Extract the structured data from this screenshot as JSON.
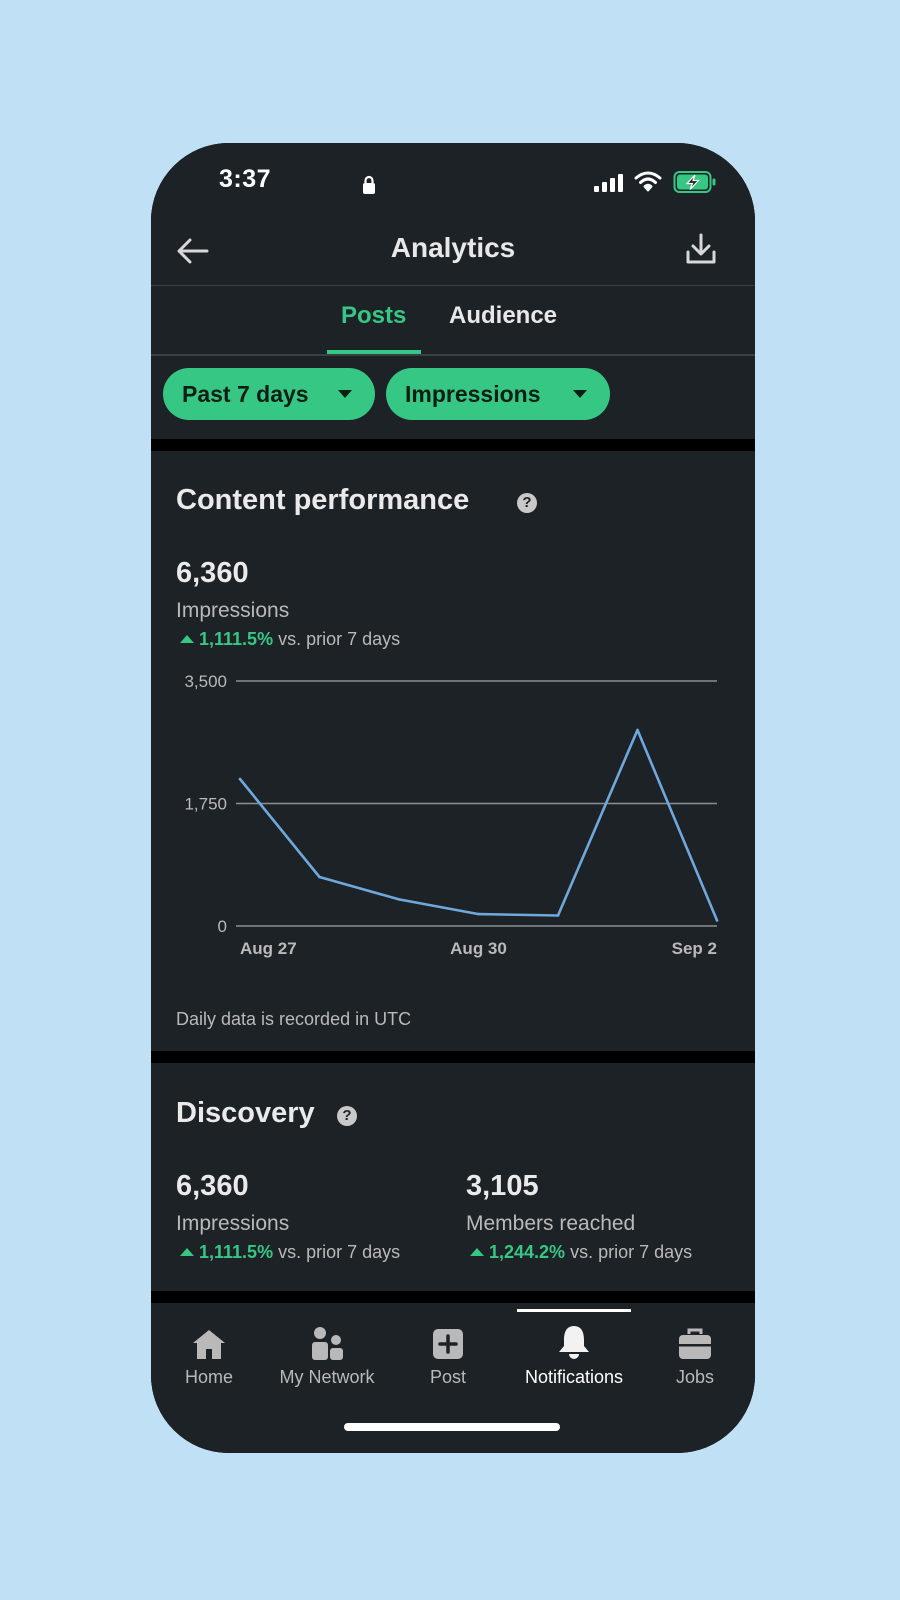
{
  "status_bar": {
    "time": "3:37"
  },
  "header": {
    "title": "Analytics"
  },
  "tabs": [
    {
      "label": "Posts",
      "active": true
    },
    {
      "label": "Audience",
      "active": false
    }
  ],
  "filters": [
    {
      "label": "Past 7 days"
    },
    {
      "label": "Impressions"
    }
  ],
  "content_performance": {
    "title": "Content performance",
    "value": "6,360",
    "label": "Impressions",
    "delta": "1,111.5%",
    "delta_suffix": "vs. prior 7 days",
    "note": "Daily data is recorded in UTC"
  },
  "chart_data": {
    "type": "line",
    "x": [
      "Aug 27",
      "Aug 28",
      "Aug 29",
      "Aug 30",
      "Aug 31",
      "Sep 1",
      "Sep 2"
    ],
    "y_ticks": [
      "3,500",
      "1,750",
      "0"
    ],
    "x_ticks": [
      "Aug 27",
      "Aug 30",
      "Sep 2"
    ],
    "ylim": [
      0,
      3500
    ],
    "series": [
      {
        "values": [
          2100,
          700,
          380,
          170,
          150,
          2800,
          80
        ]
      }
    ],
    "line_color": "#6fa8dc",
    "grid": true
  },
  "discovery": {
    "title": "Discovery",
    "metrics": [
      {
        "value": "6,360",
        "label": "Impressions",
        "delta": "1,111.5%",
        "delta_suffix": "vs. prior 7 days"
      },
      {
        "value": "3,105",
        "label": "Members reached",
        "delta": "1,244.2%",
        "delta_suffix": "vs. prior 7 days"
      }
    ]
  },
  "nav": [
    {
      "label": "Home",
      "icon": "home-icon"
    },
    {
      "label": "My Network",
      "icon": "network-icon"
    },
    {
      "label": "Post",
      "icon": "plus-square-icon"
    },
    {
      "label": "Notifications",
      "icon": "bell-icon",
      "active": true
    },
    {
      "label": "Jobs",
      "icon": "briefcase-icon"
    }
  ],
  "colors": {
    "accent": "#37c785",
    "background": "#1d2226",
    "page_bg": "#bfe0f5"
  }
}
